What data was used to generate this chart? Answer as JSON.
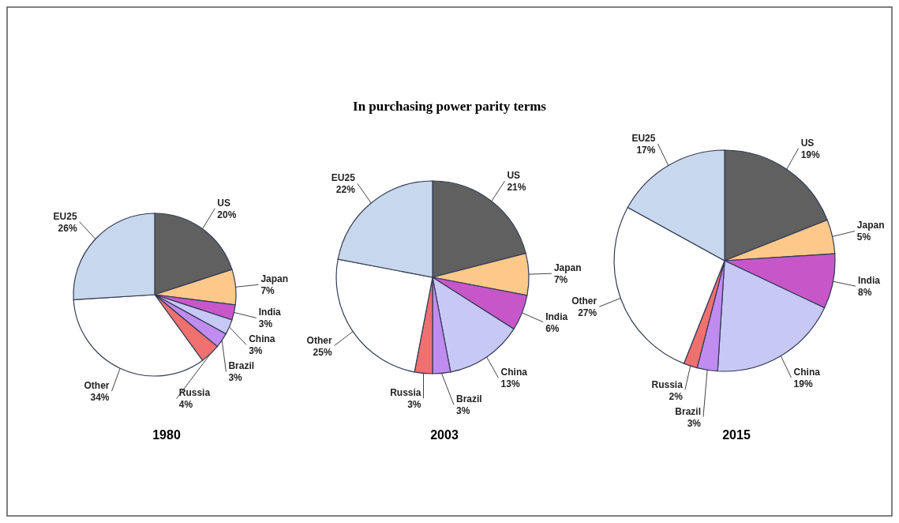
{
  "chart_data": [
    {
      "type": "pie",
      "xlabel": "1980",
      "categories": [
        "US",
        "Japan",
        "India",
        "China",
        "Brazil",
        "Russia",
        "Other",
        "EU25"
      ],
      "values": [
        20,
        7,
        3,
        3,
        3,
        4,
        34,
        26
      ],
      "value_labels": [
        "20%",
        "7%",
        "3%",
        "3%",
        "3%",
        "4%",
        "34%",
        "26%"
      ],
      "colors": [
        "#606060",
        "#fcc98a",
        "#c757c9",
        "#c8c8f5",
        "#c08cf0",
        "#f07070",
        "#ffffff",
        "#c8d8ec"
      ]
    },
    {
      "type": "pie",
      "title": "In purchasing power parity terms",
      "xlabel": "2003",
      "categories": [
        "US",
        "Japan",
        "India",
        "China",
        "Brazil",
        "Russia",
        "Other",
        "EU25"
      ],
      "values": [
        21,
        7,
        6,
        13,
        3,
        3,
        25,
        22
      ],
      "value_labels": [
        "21%",
        "7%",
        "6%",
        "13%",
        "3%",
        "3%",
        "25%",
        "22%"
      ],
      "colors": [
        "#606060",
        "#fcc98a",
        "#c757c9",
        "#c8c8f5",
        "#c08cf0",
        "#f07070",
        "#ffffff",
        "#c8d8ec"
      ]
    },
    {
      "type": "pie",
      "xlabel": "2015",
      "categories": [
        "US",
        "Japan",
        "India",
        "China",
        "Brazil",
        "Russia",
        "Other",
        "EU25"
      ],
      "values": [
        19,
        5,
        8,
        19,
        3,
        2,
        27,
        17
      ],
      "value_labels": [
        "19%",
        "5%",
        "8%",
        "19%",
        "3%",
        "2%",
        "27%",
        "17%"
      ],
      "colors": [
        "#606060",
        "#fcc98a",
        "#c757c9",
        "#c8c8f5",
        "#c08cf0",
        "#f07070",
        "#ffffff",
        "#c8d8ec"
      ]
    }
  ]
}
